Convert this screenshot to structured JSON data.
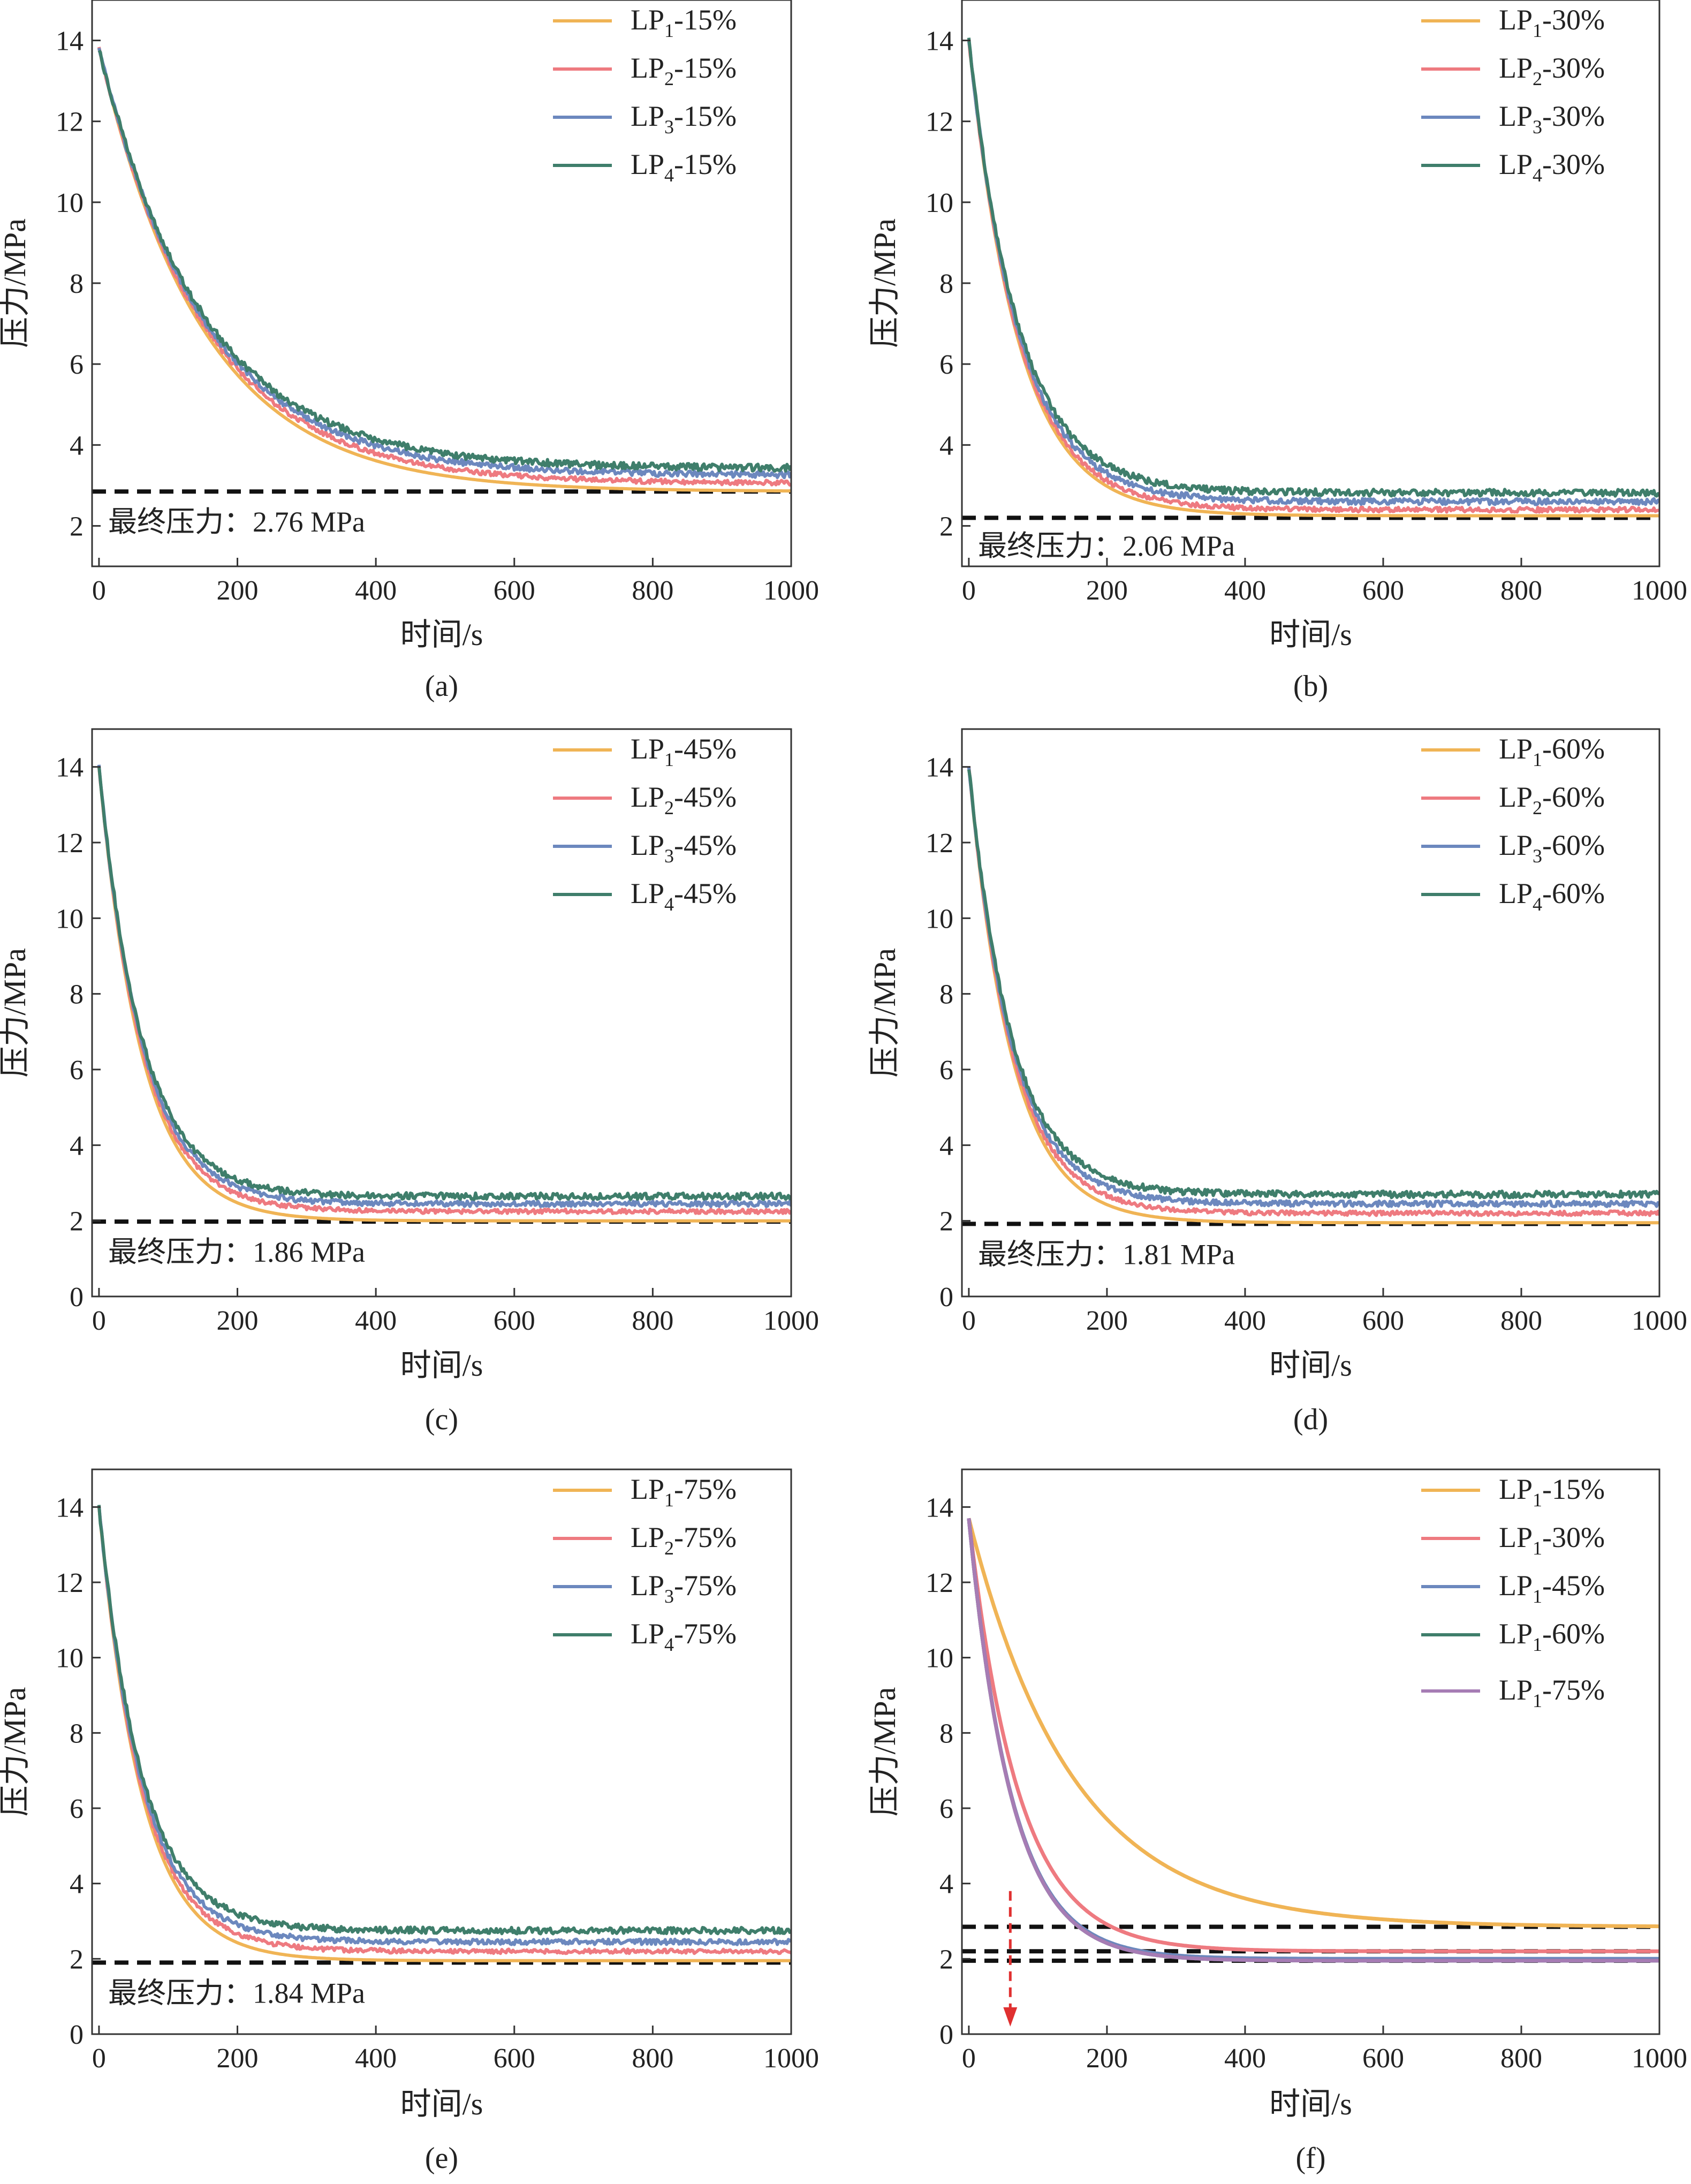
{
  "colors": {
    "LP1": "#F0B455",
    "LP2": "#EE7A80",
    "LP3": "#6C88BE",
    "LP4": "#3F7E6B",
    "LP1_75": "#A67CB4",
    "axis": "#333333",
    "dashed": "#111111",
    "arrow": "#E03030"
  },
  "chart_data": [
    {
      "id": "a",
      "type": "line",
      "caption": "(a)",
      "xlabel": "时间/s",
      "ylabel": "压力/MPa",
      "xlim": [
        -10,
        1000
      ],
      "ylim": [
        1,
        15
      ],
      "xticks": [
        0,
        200,
        400,
        600,
        800,
        1000
      ],
      "yticks": [
        2,
        4,
        6,
        8,
        10,
        12,
        14
      ],
      "annotation": "最终压力：2.76 MPa",
      "reference_lines": [
        2.85
      ],
      "series": [
        {
          "name": "LP1-15%",
          "base": "LP",
          "sub": "1",
          "suffix": "-15%",
          "color": "LP1",
          "p0": 13.8,
          "pf": 2.85,
          "tau": 150
        },
        {
          "name": "LP2-15%",
          "base": "LP",
          "sub": "2",
          "suffix": "-15%",
          "color": "LP2",
          "p0": 13.8,
          "pf": 3.05,
          "tau": 150
        },
        {
          "name": "LP3-15%",
          "base": "LP",
          "sub": "3",
          "suffix": "-15%",
          "color": "LP3",
          "p0": 13.8,
          "pf": 3.25,
          "tau": 150
        },
        {
          "name": "LP4-15%",
          "base": "LP",
          "sub": "4",
          "suffix": "-15%",
          "color": "LP4",
          "p0": 13.8,
          "pf": 3.42,
          "tau": 150
        }
      ]
    },
    {
      "id": "b",
      "type": "line",
      "caption": "(b)",
      "xlabel": "时间/s",
      "ylabel": "压力/MPa",
      "xlim": [
        -10,
        1000
      ],
      "ylim": [
        1,
        15
      ],
      "xticks": [
        0,
        200,
        400,
        600,
        800,
        1000
      ],
      "yticks": [
        2,
        4,
        6,
        8,
        10,
        12,
        14
      ],
      "annotation": "最终压力：2.06 MPa",
      "reference_lines": [
        2.2
      ],
      "series": [
        {
          "name": "LP1-30%",
          "base": "LP",
          "sub": "1",
          "suffix": "-30%",
          "color": "LP1",
          "p0": 14.0,
          "pf": 2.25,
          "tau": 72
        },
        {
          "name": "LP2-30%",
          "base": "LP",
          "sub": "2",
          "suffix": "-30%",
          "color": "LP2",
          "p0": 14.0,
          "pf": 2.4,
          "tau": 72
        },
        {
          "name": "LP3-30%",
          "base": "LP",
          "sub": "3",
          "suffix": "-30%",
          "color": "LP3",
          "p0": 14.0,
          "pf": 2.6,
          "tau": 72
        },
        {
          "name": "LP4-30%",
          "base": "LP",
          "sub": "4",
          "suffix": "-30%",
          "color": "LP4",
          "p0": 14.0,
          "pf": 2.82,
          "tau": 72
        }
      ]
    },
    {
      "id": "c",
      "type": "line",
      "caption": "(c)",
      "xlabel": "时间/s",
      "ylabel": "压力/MPa",
      "xlim": [
        -10,
        1000
      ],
      "ylim": [
        0,
        15
      ],
      "xticks": [
        0,
        200,
        400,
        600,
        800,
        1000
      ],
      "yticks": [
        0,
        2,
        4,
        6,
        8,
        10,
        12,
        14
      ],
      "annotation": "最终压力：1.86 MPa",
      "reference_lines": [
        1.98
      ],
      "series": [
        {
          "name": "LP1-45%",
          "base": "LP",
          "sub": "1",
          "suffix": "-45%",
          "color": "LP1",
          "p0": 14.0,
          "pf": 2.0,
          "tau": 62
        },
        {
          "name": "LP2-45%",
          "base": "LP",
          "sub": "2",
          "suffix": "-45%",
          "color": "LP2",
          "p0": 14.0,
          "pf": 2.25,
          "tau": 62
        },
        {
          "name": "LP3-45%",
          "base": "LP",
          "sub": "3",
          "suffix": "-45%",
          "color": "LP3",
          "p0": 14.0,
          "pf": 2.45,
          "tau": 62
        },
        {
          "name": "LP4-45%",
          "base": "LP",
          "sub": "4",
          "suffix": "-45%",
          "color": "LP4",
          "p0": 14.0,
          "pf": 2.65,
          "tau": 62
        }
      ]
    },
    {
      "id": "d",
      "type": "line",
      "caption": "(d)",
      "xlabel": "时间/s",
      "ylabel": "压力/MPa",
      "xlim": [
        -10,
        1000
      ],
      "ylim": [
        0,
        15
      ],
      "xticks": [
        0,
        200,
        400,
        600,
        800,
        1000
      ],
      "yticks": [
        0,
        2,
        4,
        6,
        8,
        10,
        12,
        14
      ],
      "annotation": "最终压力：1.81 MPa",
      "reference_lines": [
        1.92
      ],
      "series": [
        {
          "name": "LP1-60%",
          "base": "LP",
          "sub": "1",
          "suffix": "-60%",
          "color": "LP1",
          "p0": 14.0,
          "pf": 1.95,
          "tau": 62
        },
        {
          "name": "LP2-60%",
          "base": "LP",
          "sub": "2",
          "suffix": "-60%",
          "color": "LP2",
          "p0": 14.0,
          "pf": 2.2,
          "tau": 62
        },
        {
          "name": "LP3-60%",
          "base": "LP",
          "sub": "3",
          "suffix": "-60%",
          "color": "LP3",
          "p0": 14.0,
          "pf": 2.45,
          "tau": 62
        },
        {
          "name": "LP4-60%",
          "base": "LP",
          "sub": "4",
          "suffix": "-60%",
          "color": "LP4",
          "p0": 14.0,
          "pf": 2.7,
          "tau": 62
        }
      ]
    },
    {
      "id": "e",
      "type": "line",
      "caption": "(e)",
      "xlabel": "时间/s",
      "ylabel": "压力/MPa",
      "xlim": [
        -10,
        1000
      ],
      "ylim": [
        0,
        15
      ],
      "xticks": [
        0,
        200,
        400,
        600,
        800,
        1000
      ],
      "yticks": [
        0,
        2,
        4,
        6,
        8,
        10,
        12,
        14
      ],
      "annotation": "最终压力：1.84 MPa",
      "reference_lines": [
        1.9
      ],
      "series": [
        {
          "name": "LP1-75%",
          "base": "LP",
          "sub": "1",
          "suffix": "-75%",
          "color": "LP1",
          "p0": 14.0,
          "pf": 1.95,
          "tau": 62
        },
        {
          "name": "LP2-75%",
          "base": "LP",
          "sub": "2",
          "suffix": "-75%",
          "color": "LP2",
          "p0": 14.0,
          "pf": 2.2,
          "tau": 62
        },
        {
          "name": "LP3-75%",
          "base": "LP",
          "sub": "3",
          "suffix": "-75%",
          "color": "LP3",
          "p0": 14.0,
          "pf": 2.45,
          "tau": 62
        },
        {
          "name": "LP4-75%",
          "base": "LP",
          "sub": "4",
          "suffix": "-75%",
          "color": "LP4",
          "p0": 14.0,
          "pf": 2.75,
          "tau": 62
        }
      ]
    },
    {
      "id": "f",
      "type": "line",
      "caption": "(f)",
      "xlabel": "时间/s",
      "ylabel": "压力/MPa",
      "xlim": [
        -10,
        1000
      ],
      "ylim": [
        0,
        15
      ],
      "xticks": [
        0,
        200,
        400,
        600,
        800,
        1000
      ],
      "yticks": [
        0,
        2,
        4,
        6,
        8,
        10,
        12,
        14
      ],
      "annotation": "",
      "reference_lines": [
        2.85,
        2.2,
        1.95
      ],
      "arrow": {
        "x": 60,
        "from": 3.8,
        "to": 0.2
      },
      "series": [
        {
          "name": "LP1-15%",
          "base": "LP",
          "sub": "1",
          "suffix": "-15%",
          "color": "LP1",
          "p0": 13.7,
          "pf": 2.85,
          "tau": 150
        },
        {
          "name": "LP1-30%",
          "base": "LP",
          "sub": "1",
          "suffix": "-30%",
          "color": "LP2",
          "p0": 13.7,
          "pf": 2.2,
          "tau": 72
        },
        {
          "name": "LP1-45%",
          "base": "LP",
          "sub": "1",
          "suffix": "-45%",
          "color": "LP3",
          "p0": 13.7,
          "pf": 2.0,
          "tau": 62
        },
        {
          "name": "LP1-60%",
          "base": "LP",
          "sub": "1",
          "suffix": "-60%",
          "color": "LP4",
          "p0": 13.7,
          "pf": 1.95,
          "tau": 62
        },
        {
          "name": "LP1-75%",
          "base": "LP",
          "sub": "1",
          "suffix": "-75%",
          "color": "LP1_75",
          "p0": 13.7,
          "pf": 1.95,
          "tau": 62
        }
      ]
    }
  ]
}
